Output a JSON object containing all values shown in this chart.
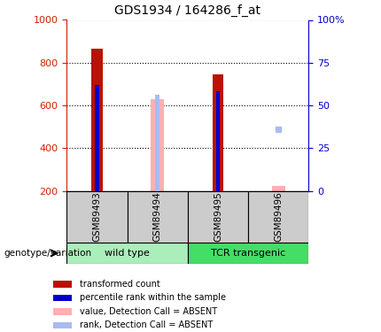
{
  "title": "GDS1934 / 164286_f_at",
  "samples": [
    "GSM89493",
    "GSM89494",
    "GSM89495",
    "GSM89496"
  ],
  "ylim_left": [
    200,
    1000
  ],
  "ylim_right": [
    0,
    100
  ],
  "yticks_left": [
    200,
    400,
    600,
    800,
    1000
  ],
  "yticks_right": [
    0,
    25,
    50,
    75,
    100
  ],
  "transformed_counts": [
    865,
    null,
    745,
    null
  ],
  "absent_values": [
    null,
    630,
    null,
    222
  ],
  "percentile_ranks_present": [
    695,
    null,
    668,
    null
  ],
  "percentile_ranks_absent_bar": [
    null,
    648,
    null,
    null
  ],
  "percentile_ranks_absent_dot": [
    null,
    null,
    null,
    490
  ],
  "color_transformed": "#bb1100",
  "color_percentile": "#0000cc",
  "color_absent_value": "#ffb0b0",
  "color_absent_rank": "#aabbee",
  "legend_labels": [
    "transformed count",
    "percentile rank within the sample",
    "value, Detection Call = ABSENT",
    "rank, Detection Call = ABSENT"
  ],
  "legend_colors": [
    "#bb1100",
    "#0000cc",
    "#ffb0b0",
    "#aabbee"
  ],
  "xlabel_group": "genotype/variation",
  "tick_color_left": "#cc2200",
  "tick_color_right": "#0000cc",
  "wt_color": "#aaeebb",
  "tcr_color": "#44dd66",
  "sample_bg": "#cccccc"
}
